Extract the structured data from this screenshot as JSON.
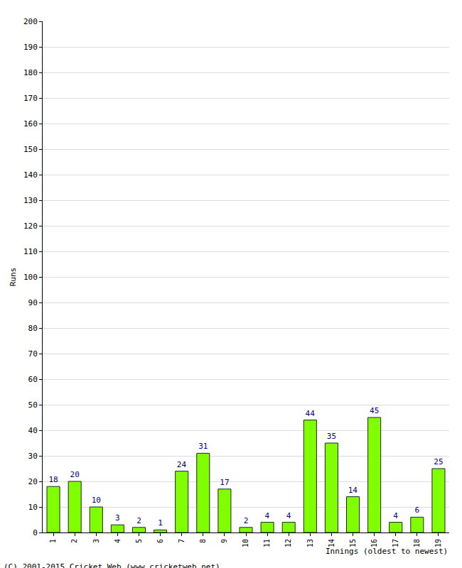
{
  "chart_data": {
    "type": "bar",
    "categories": [
      "1",
      "2",
      "3",
      "4",
      "5",
      "6",
      "7",
      "8",
      "9",
      "10",
      "11",
      "12",
      "13",
      "14",
      "15",
      "16",
      "17",
      "18",
      "19"
    ],
    "values": [
      18,
      20,
      10,
      3,
      2,
      1,
      24,
      31,
      17,
      2,
      4,
      4,
      44,
      35,
      14,
      45,
      4,
      6,
      25
    ],
    "color": "#80ff00",
    "xlabel": "Innings (oldest to newest)",
    "ylabel": "Runs",
    "annotations": [
      "(C) 2001-2015 Cricket Web (www.cricketweb.net)"
    ],
    "ylim": [
      0,
      200
    ],
    "yticks": [
      0,
      10,
      20,
      30,
      40,
      50,
      60,
      70,
      80,
      90,
      100,
      110,
      120,
      130,
      140,
      150,
      160,
      170,
      180,
      190,
      200
    ],
    "grid": true,
    "data_labels": true
  }
}
